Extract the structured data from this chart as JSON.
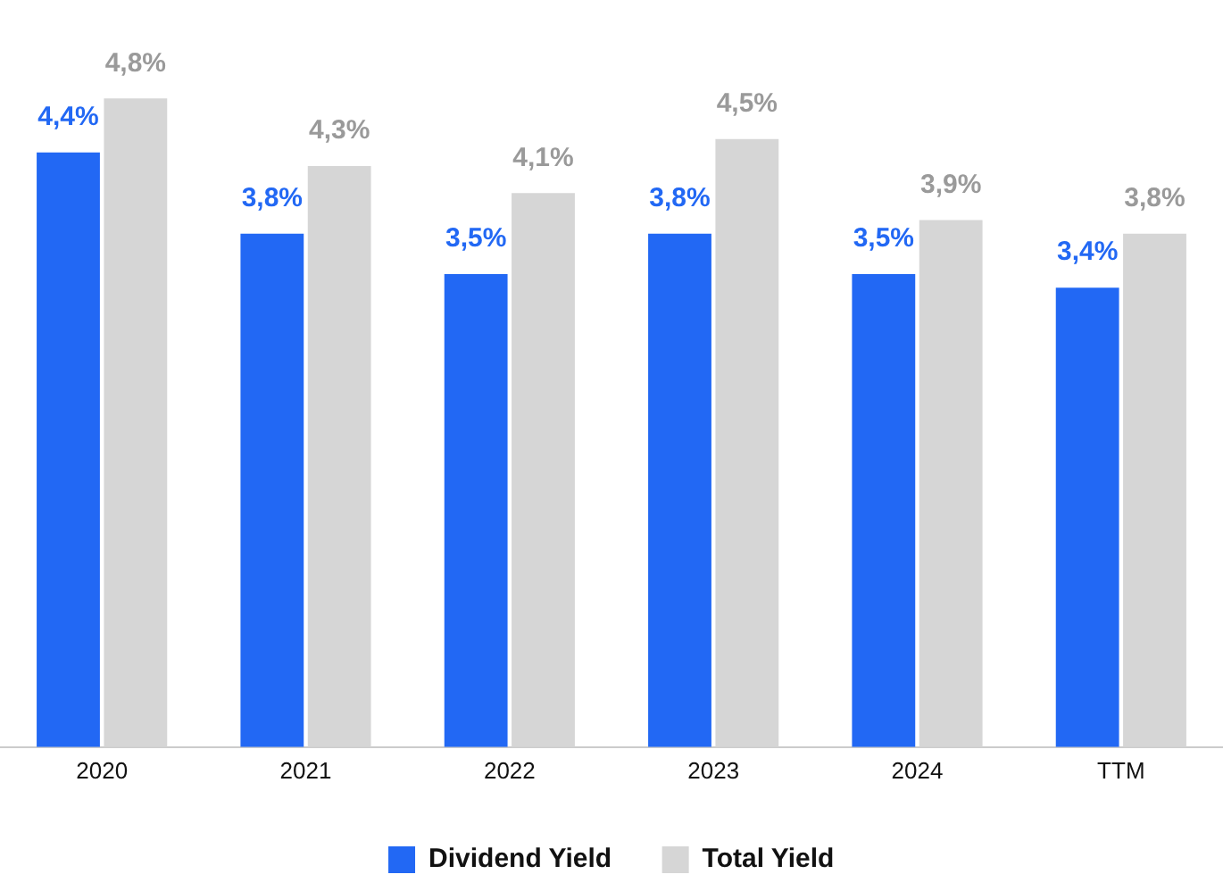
{
  "chart_data": {
    "type": "bar",
    "categories": [
      "2020",
      "2021",
      "2022",
      "2023",
      "2024",
      "TTM"
    ],
    "series": [
      {
        "name": "Dividend Yield",
        "color": "#2268f4",
        "values": [
          4.4,
          3.8,
          3.5,
          3.8,
          3.5,
          3.4
        ],
        "value_labels": [
          "4,4%",
          "3,8%",
          "3,5%",
          "3,8%",
          "3,5%",
          "3,4%"
        ]
      },
      {
        "name": "Total Yield",
        "color": "#d6d6d6",
        "values": [
          4.8,
          4.3,
          4.1,
          4.5,
          3.9,
          3.8
        ],
        "value_labels": [
          "4,8%",
          "4,3%",
          "4,1%",
          "4,5%",
          "3,9%",
          "3,8%"
        ]
      }
    ],
    "tick_labels": "x",
    "grid": false,
    "legend": "bottom"
  }
}
